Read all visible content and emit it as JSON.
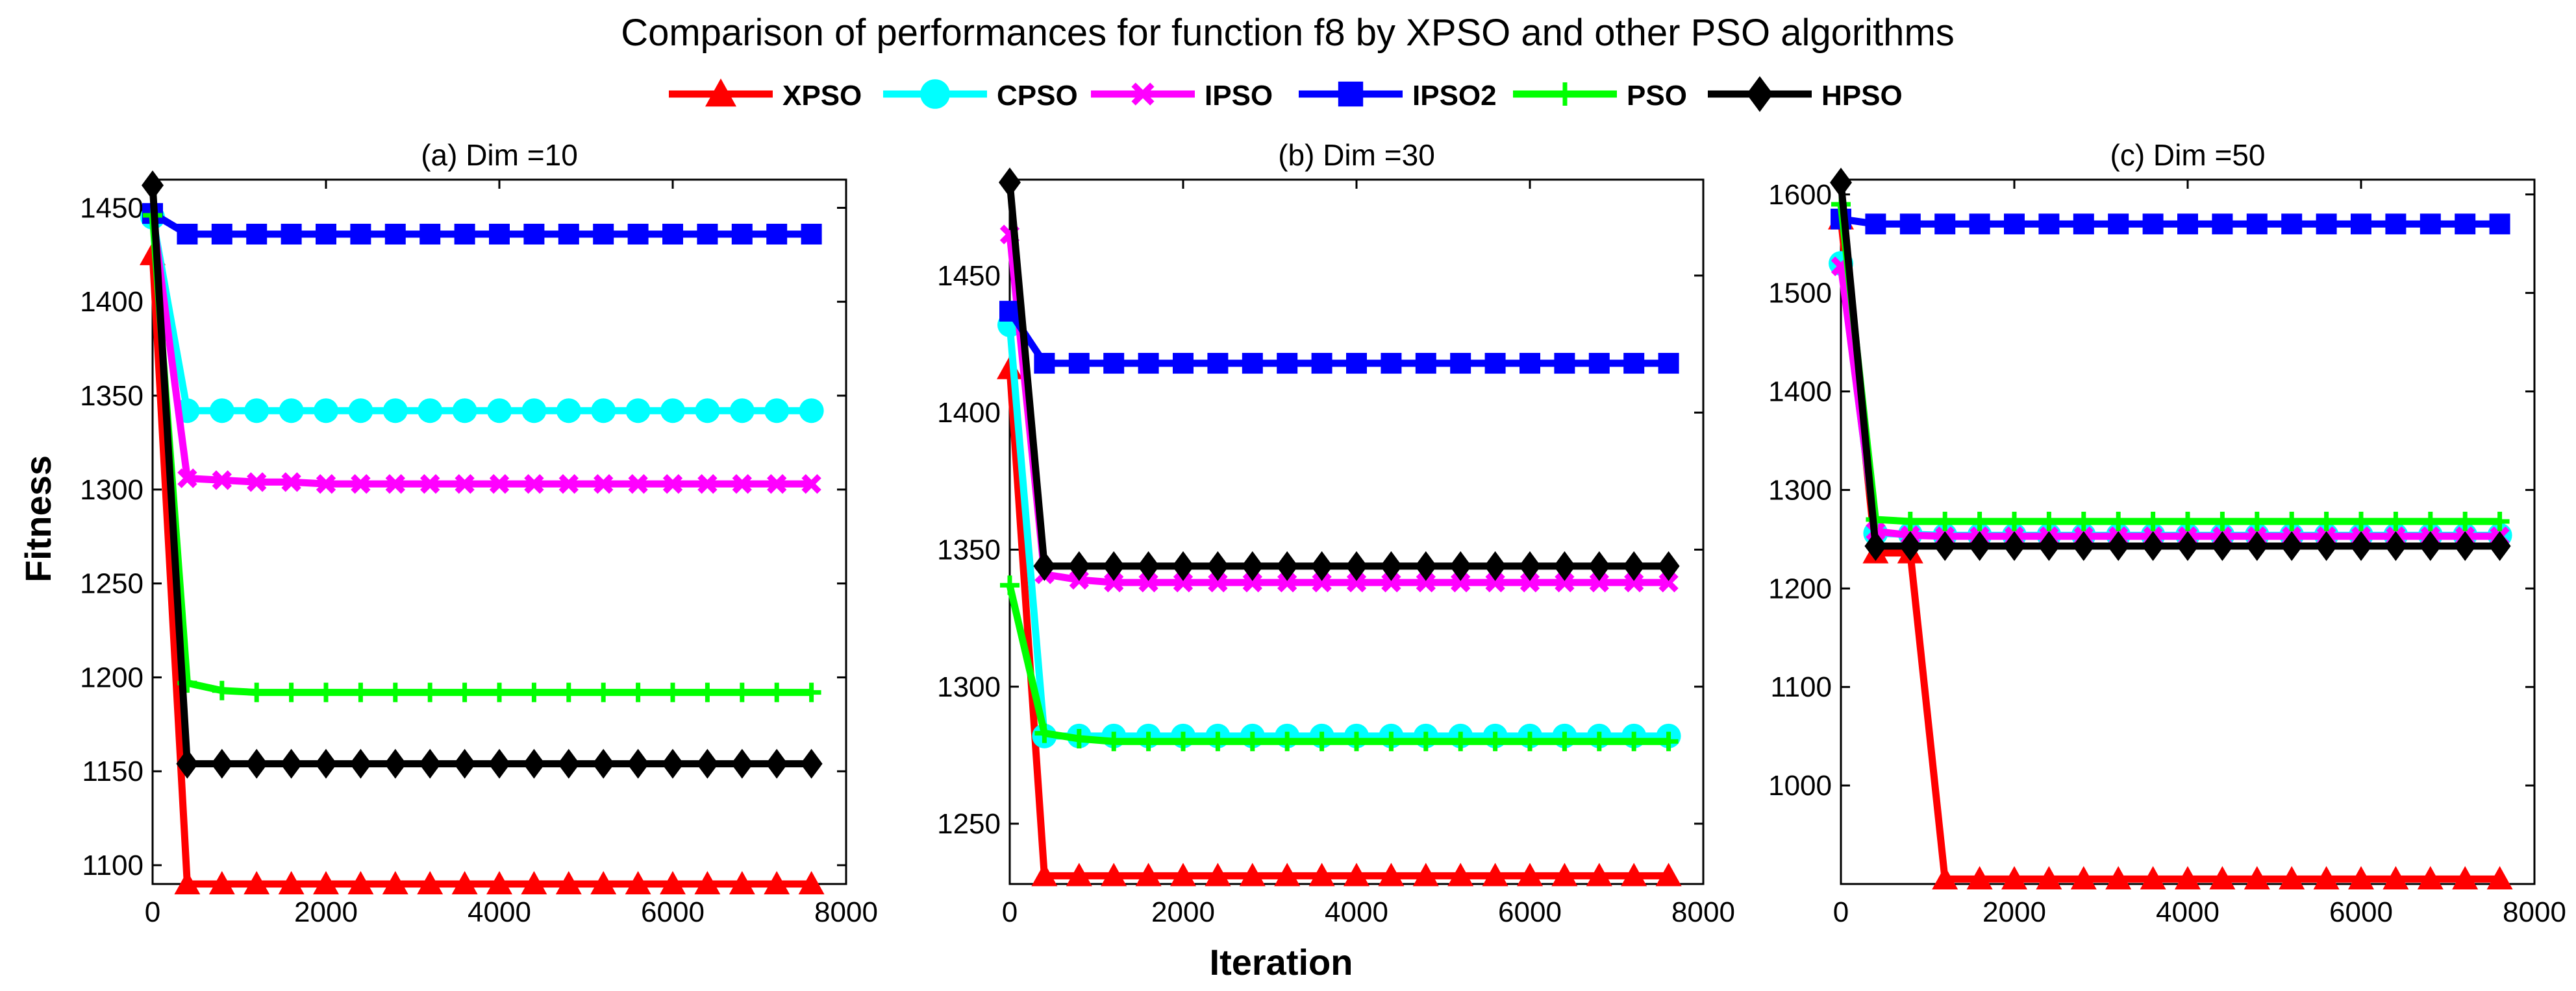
{
  "title": "Comparison of performances for function f8 by XPSO and other PSO algorithms",
  "xlabel": "Iteration",
  "ylabel": "Fitness",
  "legend": [
    {
      "name": "XPSO",
      "color": "#ff0000",
      "marker": "triangle"
    },
    {
      "name": "CPSO",
      "color": "#00ffff",
      "marker": "circle"
    },
    {
      "name": "IPSO",
      "color": "#ff00ff",
      "marker": "x"
    },
    {
      "name": "IPSO2",
      "color": "#0000ff",
      "marker": "square"
    },
    {
      "name": "PSO",
      "color": "#00ff00",
      "marker": "plus"
    },
    {
      "name": "HPSO",
      "color": "#000000",
      "marker": "diamond"
    }
  ],
  "chart_data": [
    {
      "type": "line",
      "title": "(a) Dim =10",
      "xlim": [
        0,
        8000
      ],
      "ylim": [
        1090,
        1465
      ],
      "xticks": [
        0,
        2000,
        4000,
        6000,
        8000
      ],
      "yticks": [
        1100,
        1150,
        1200,
        1250,
        1300,
        1350,
        1400,
        1450
      ],
      "x": [
        0,
        400,
        800,
        1200,
        1600,
        2000,
        2400,
        2800,
        3200,
        3600,
        4000,
        4400,
        4800,
        5200,
        5600,
        6000,
        6400,
        6800,
        7200,
        7600
      ],
      "series": [
        {
          "name": "XPSO",
          "values": [
            1425,
            1090,
            1090,
            1090,
            1090,
            1090,
            1090,
            1090,
            1090,
            1090,
            1090,
            1090,
            1090,
            1090,
            1090,
            1090,
            1090,
            1090,
            1090,
            1090
          ]
        },
        {
          "name": "CPSO",
          "values": [
            1445,
            1342,
            1342,
            1342,
            1342,
            1342,
            1342,
            1342,
            1342,
            1342,
            1342,
            1342,
            1342,
            1342,
            1342,
            1342,
            1342,
            1342,
            1342,
            1342
          ]
        },
        {
          "name": "IPSO",
          "values": [
            1447,
            1306,
            1305,
            1304,
            1304,
            1303,
            1303,
            1303,
            1303,
            1303,
            1303,
            1303,
            1303,
            1303,
            1303,
            1303,
            1303,
            1303,
            1303,
            1303
          ]
        },
        {
          "name": "IPSO2",
          "values": [
            1447,
            1436,
            1436,
            1436,
            1436,
            1436,
            1436,
            1436,
            1436,
            1436,
            1436,
            1436,
            1436,
            1436,
            1436,
            1436,
            1436,
            1436,
            1436,
            1436
          ]
        },
        {
          "name": "PSO",
          "values": [
            1446,
            1197,
            1193,
            1192,
            1192,
            1192,
            1192,
            1192,
            1192,
            1192,
            1192,
            1192,
            1192,
            1192,
            1192,
            1192,
            1192,
            1192,
            1192,
            1192
          ]
        },
        {
          "name": "HPSO",
          "values": [
            1462,
            1154,
            1154,
            1154,
            1154,
            1154,
            1154,
            1154,
            1154,
            1154,
            1154,
            1154,
            1154,
            1154,
            1154,
            1154,
            1154,
            1154,
            1154,
            1154
          ]
        }
      ]
    },
    {
      "type": "line",
      "title": "(b) Dim =30",
      "xlim": [
        0,
        8000
      ],
      "ylim": [
        1228,
        1485
      ],
      "xticks": [
        0,
        2000,
        4000,
        6000,
        8000
      ],
      "yticks": [
        1250,
        1300,
        1350,
        1400,
        1450
      ],
      "x": [
        0,
        400,
        800,
        1200,
        1600,
        2000,
        2400,
        2800,
        3200,
        3600,
        4000,
        4400,
        4800,
        5200,
        5600,
        6000,
        6400,
        6800,
        7200,
        7600
      ],
      "series": [
        {
          "name": "XPSO",
          "values": [
            1416,
            1231,
            1231,
            1231,
            1231,
            1231,
            1231,
            1231,
            1231,
            1231,
            1231,
            1231,
            1231,
            1231,
            1231,
            1231,
            1231,
            1231,
            1231,
            1231
          ]
        },
        {
          "name": "CPSO",
          "values": [
            1432,
            1282,
            1282,
            1282,
            1282,
            1282,
            1282,
            1282,
            1282,
            1282,
            1282,
            1282,
            1282,
            1282,
            1282,
            1282,
            1282,
            1282,
            1282,
            1282
          ]
        },
        {
          "name": "IPSO",
          "values": [
            1465,
            1341,
            1339,
            1338,
            1338,
            1338,
            1338,
            1338,
            1338,
            1338,
            1338,
            1338,
            1338,
            1338,
            1338,
            1338,
            1338,
            1338,
            1338,
            1338
          ]
        },
        {
          "name": "IPSO2",
          "values": [
            1437,
            1418,
            1418,
            1418,
            1418,
            1418,
            1418,
            1418,
            1418,
            1418,
            1418,
            1418,
            1418,
            1418,
            1418,
            1418,
            1418,
            1418,
            1418,
            1418
          ]
        },
        {
          "name": "PSO",
          "values": [
            1337,
            1283,
            1281,
            1280,
            1280,
            1280,
            1280,
            1280,
            1280,
            1280,
            1280,
            1280,
            1280,
            1280,
            1280,
            1280,
            1280,
            1280,
            1280,
            1280
          ]
        },
        {
          "name": "HPSO",
          "values": [
            1484,
            1344,
            1344,
            1344,
            1344,
            1344,
            1344,
            1344,
            1344,
            1344,
            1344,
            1344,
            1344,
            1344,
            1344,
            1344,
            1344,
            1344,
            1344,
            1344
          ]
        }
      ]
    },
    {
      "type": "line",
      "title": "(c) Dim =50",
      "xlim": [
        0,
        8000
      ],
      "ylim": [
        900,
        1615
      ],
      "xticks": [
        0,
        2000,
        4000,
        6000,
        8000
      ],
      "yticks": [
        1000,
        1100,
        1200,
        1300,
        1400,
        1500,
        1600
      ],
      "x": [
        0,
        400,
        800,
        1200,
        1600,
        2000,
        2400,
        2800,
        3200,
        3600,
        4000,
        4400,
        4800,
        5200,
        5600,
        6000,
        6400,
        6800,
        7200,
        7600
      ],
      "series": [
        {
          "name": "XPSO",
          "values": [
            1575,
            1236,
            1236,
            905,
            905,
            905,
            905,
            905,
            905,
            905,
            905,
            905,
            905,
            905,
            905,
            905,
            905,
            905,
            905,
            905
          ]
        },
        {
          "name": "CPSO",
          "values": [
            1530,
            1256,
            1255,
            1254,
            1254,
            1254,
            1254,
            1254,
            1254,
            1254,
            1254,
            1254,
            1254,
            1254,
            1254,
            1254,
            1254,
            1254,
            1254,
            1254
          ]
        },
        {
          "name": "IPSO",
          "values": [
            1527,
            1258,
            1254,
            1253,
            1253,
            1253,
            1253,
            1253,
            1253,
            1253,
            1253,
            1253,
            1253,
            1253,
            1253,
            1253,
            1253,
            1253,
            1253,
            1253
          ]
        },
        {
          "name": "IPSO2",
          "values": [
            1575,
            1570,
            1570,
            1570,
            1570,
            1570,
            1570,
            1570,
            1570,
            1570,
            1570,
            1570,
            1570,
            1570,
            1570,
            1570,
            1570,
            1570,
            1570,
            1570
          ]
        },
        {
          "name": "PSO",
          "values": [
            1590,
            1270,
            1268,
            1268,
            1268,
            1268,
            1268,
            1268,
            1268,
            1268,
            1268,
            1268,
            1268,
            1268,
            1268,
            1268,
            1268,
            1268,
            1268,
            1268
          ]
        },
        {
          "name": "HPSO",
          "values": [
            1612,
            1243,
            1243,
            1243,
            1243,
            1243,
            1243,
            1243,
            1243,
            1243,
            1243,
            1243,
            1243,
            1243,
            1243,
            1243,
            1243,
            1243,
            1243,
            1243
          ]
        }
      ]
    }
  ]
}
